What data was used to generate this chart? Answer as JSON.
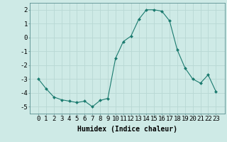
{
  "x": [
    0,
    1,
    2,
    3,
    4,
    5,
    6,
    7,
    8,
    9,
    10,
    11,
    12,
    13,
    14,
    15,
    16,
    17,
    18,
    19,
    20,
    21,
    22,
    23
  ],
  "y": [
    -3.0,
    -3.7,
    -4.3,
    -4.5,
    -4.6,
    -4.7,
    -4.6,
    -5.0,
    -4.55,
    -4.4,
    -1.5,
    -0.3,
    0.1,
    1.3,
    2.0,
    2.0,
    1.9,
    1.2,
    -0.9,
    -2.2,
    -3.0,
    -3.3,
    -2.7,
    -3.9
  ],
  "line_color": "#1a7a6e",
  "marker": "D",
  "marker_size": 2.0,
  "bg_color": "#ceeae6",
  "grid_color": "#b8d8d4",
  "xlabel": "Humidex (Indice chaleur)",
  "xlabel_fontsize": 7,
  "tick_fontsize": 6.5,
  "ylim": [
    -5.5,
    2.5
  ],
  "yticks": [
    -5,
    -4,
    -3,
    -2,
    -1,
    0,
    1,
    2
  ],
  "xticks": [
    0,
    1,
    2,
    3,
    4,
    5,
    6,
    7,
    8,
    9,
    10,
    11,
    12,
    13,
    14,
    15,
    16,
    17,
    18,
    19,
    20,
    21,
    22,
    23
  ]
}
